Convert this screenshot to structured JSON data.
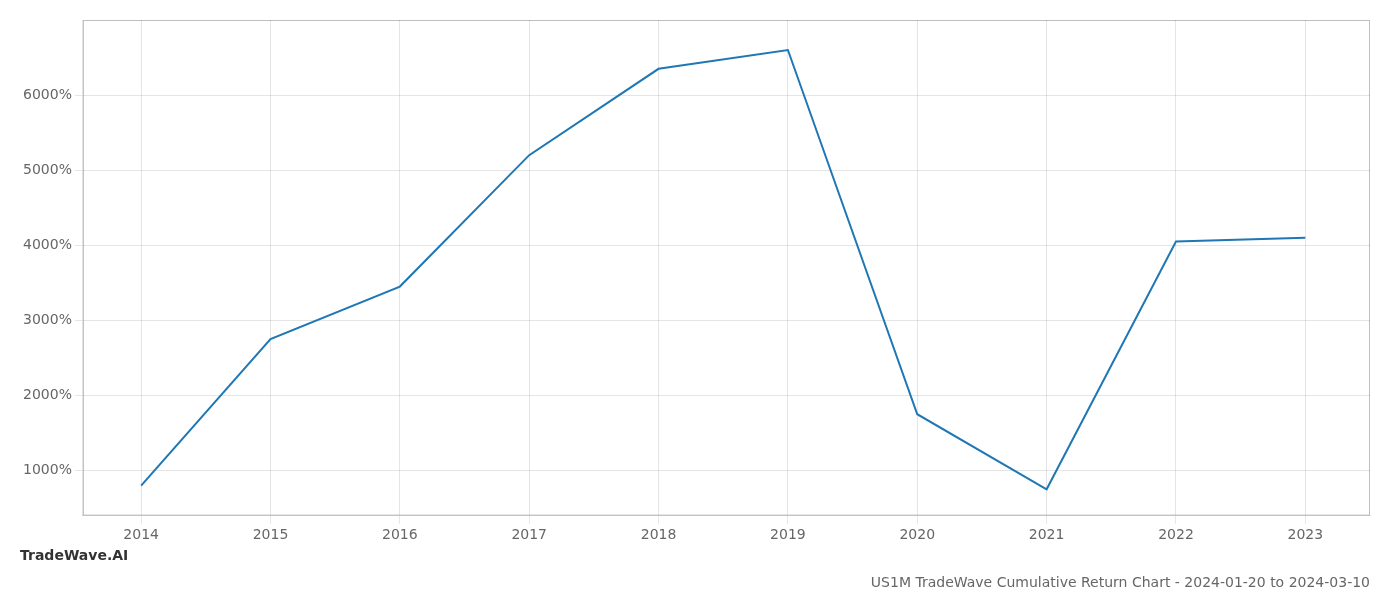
{
  "chart_data": {
    "type": "line",
    "title": "US1M TradeWave Cumulative Return Chart - 2024-01-20 to 2024-03-10",
    "annotations": [
      "TradeWave.AI"
    ],
    "x": [
      2014,
      2015,
      2016,
      2017,
      2018,
      2019,
      2020,
      2021,
      2022,
      2023
    ],
    "values": [
      800,
      2750,
      3450,
      5200,
      6350,
      6600,
      1750,
      750,
      4050,
      4100
    ],
    "color": "#1f77b4",
    "xlim": [
      2013.55,
      2023.5
    ],
    "xticks": [
      2014,
      2015,
      2016,
      2017,
      2018,
      2019,
      2020,
      2021,
      2022,
      2023
    ],
    "ylim": [
      400,
      7000
    ],
    "yticks": [
      {
        "value": 1000,
        "label": "1000%"
      },
      {
        "value": 2000,
        "label": "2000%"
      },
      {
        "value": 3000,
        "label": "3000%"
      },
      {
        "value": 4000,
        "label": "4000%"
      },
      {
        "value": 5000,
        "label": "5000%"
      },
      {
        "value": 6000,
        "label": "6000%"
      }
    ],
    "grid": true
  }
}
